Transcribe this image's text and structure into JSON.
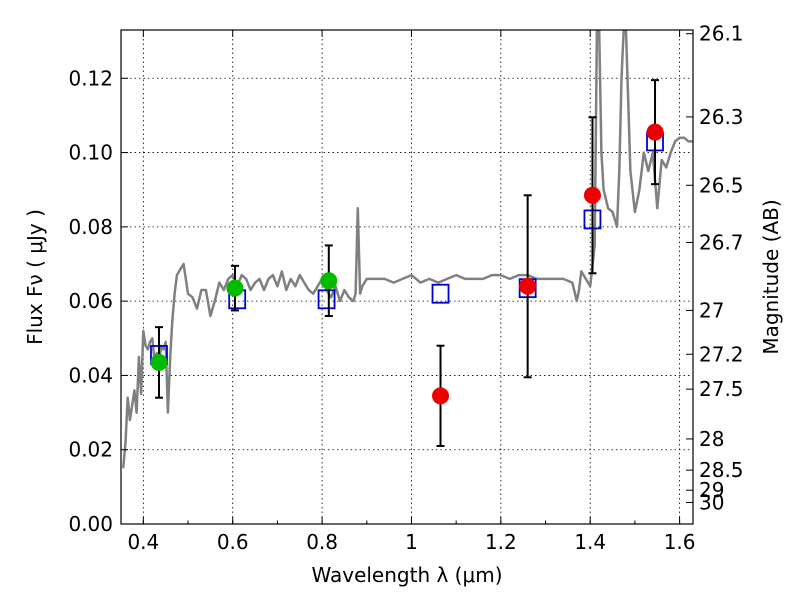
{
  "chart_data": {
    "type": "scatter",
    "xlabel": "Wavelength  λ (μm)",
    "ylabel": "Flux  Fν  ( μJy )",
    "y2label": "Magnitude (AB)",
    "xlim": [
      0.35,
      1.63
    ],
    "ylim": [
      0.0,
      0.133
    ],
    "grid": true,
    "x_ticks": [
      0.4,
      0.6,
      0.8,
      1.0,
      1.2,
      1.4,
      1.6
    ],
    "x_tick_labels": [
      "0.4",
      "0.6",
      "0.8",
      "1",
      "1.2",
      "1.4",
      "1.6"
    ],
    "y_ticks": [
      0.0,
      0.02,
      0.04,
      0.06,
      0.08,
      0.1,
      0.12
    ],
    "y_tick_labels": [
      "0.00",
      "0.02",
      "0.04",
      "0.06",
      "0.08",
      "0.10",
      "0.12"
    ],
    "y2_ticks_flux": [
      0.132,
      0.1096,
      0.0912,
      0.0758,
      0.0575,
      0.0457,
      0.0363,
      0.0229,
      0.0145,
      0.0091,
      0.0058
    ],
    "y2_tick_labels": [
      "26.1",
      "26.3",
      "26.5",
      "26.7",
      "27",
      "27.2",
      "27.5",
      "28",
      "28.5",
      "29",
      "30"
    ],
    "colors": {
      "model": "#808080",
      "model_points": "#0000cc",
      "green_points": "#00bb00",
      "red_points": "#ee0000",
      "errorbar": "#000000",
      "grid": "#000000"
    },
    "series": [
      {
        "name": "model_spectrum",
        "kind": "line",
        "x": [
          0.355,
          0.36,
          0.365,
          0.37,
          0.375,
          0.38,
          0.385,
          0.39,
          0.395,
          0.4,
          0.405,
          0.41,
          0.415,
          0.42,
          0.425,
          0.43,
          0.435,
          0.44,
          0.445,
          0.45,
          0.455,
          0.46,
          0.465,
          0.47,
          0.475,
          0.48,
          0.485,
          0.49,
          0.495,
          0.5,
          0.51,
          0.52,
          0.53,
          0.54,
          0.55,
          0.56,
          0.57,
          0.58,
          0.59,
          0.6,
          0.61,
          0.62,
          0.63,
          0.64,
          0.65,
          0.66,
          0.67,
          0.68,
          0.69,
          0.7,
          0.71,
          0.72,
          0.73,
          0.74,
          0.75,
          0.76,
          0.77,
          0.78,
          0.79,
          0.8,
          0.81,
          0.82,
          0.83,
          0.84,
          0.85,
          0.86,
          0.87,
          0.875,
          0.88,
          0.885,
          0.89,
          0.9,
          0.92,
          0.94,
          0.96,
          0.98,
          1.0,
          1.02,
          1.04,
          1.06,
          1.08,
          1.1,
          1.12,
          1.14,
          1.16,
          1.18,
          1.2,
          1.22,
          1.24,
          1.26,
          1.28,
          1.3,
          1.32,
          1.34,
          1.36,
          1.37,
          1.375,
          1.38,
          1.39,
          1.4,
          1.41,
          1.415,
          1.42,
          1.425,
          1.43,
          1.44,
          1.45,
          1.46,
          1.465,
          1.47,
          1.475,
          1.48,
          1.49,
          1.5,
          1.51,
          1.52,
          1.53,
          1.54,
          1.55,
          1.56,
          1.57,
          1.58,
          1.59,
          1.6,
          1.61,
          1.62,
          1.63
        ],
        "y": [
          0.015,
          0.022,
          0.034,
          0.028,
          0.032,
          0.036,
          0.03,
          0.045,
          0.035,
          0.052,
          0.048,
          0.047,
          0.049,
          0.05,
          0.044,
          0.046,
          0.043,
          0.048,
          0.047,
          0.049,
          0.03,
          0.045,
          0.055,
          0.062,
          0.067,
          0.068,
          0.069,
          0.07,
          0.066,
          0.062,
          0.061,
          0.058,
          0.063,
          0.063,
          0.056,
          0.06,
          0.065,
          0.063,
          0.066,
          0.067,
          0.064,
          0.067,
          0.066,
          0.063,
          0.065,
          0.066,
          0.063,
          0.066,
          0.067,
          0.064,
          0.068,
          0.063,
          0.066,
          0.064,
          0.067,
          0.065,
          0.063,
          0.062,
          0.064,
          0.066,
          0.063,
          0.061,
          0.064,
          0.06,
          0.063,
          0.061,
          0.06,
          0.062,
          0.085,
          0.062,
          0.064,
          0.066,
          0.066,
          0.066,
          0.065,
          0.066,
          0.067,
          0.065,
          0.066,
          0.065,
          0.066,
          0.067,
          0.066,
          0.066,
          0.066,
          0.067,
          0.067,
          0.066,
          0.067,
          0.067,
          0.066,
          0.066,
          0.066,
          0.066,
          0.065,
          0.06,
          0.063,
          0.068,
          0.066,
          0.064,
          0.075,
          0.133,
          0.133,
          0.1,
          0.09,
          0.085,
          0.084,
          0.08,
          0.095,
          0.12,
          0.133,
          0.133,
          0.095,
          0.084,
          0.09,
          0.1,
          0.095,
          0.1,
          0.085,
          0.098,
          0.096,
          0.1,
          0.103,
          0.104,
          0.104,
          0.103,
          0.103
        ]
      },
      {
        "name": "model_photometry",
        "kind": "open_square",
        "x": [
          0.435,
          0.61,
          0.81,
          1.065,
          1.26,
          1.405,
          1.545
        ],
        "y": [
          0.0455,
          0.0605,
          0.0605,
          0.062,
          0.0635,
          0.082,
          0.103
        ]
      },
      {
        "name": "observed_green",
        "kind": "filled_circle",
        "x": [
          0.435,
          0.605,
          0.815
        ],
        "y": [
          0.0435,
          0.0635,
          0.0655
        ],
        "yerr": [
          0.0095,
          0.006,
          0.0095
        ]
      },
      {
        "name": "observed_red",
        "kind": "filled_circle",
        "x": [
          1.065,
          1.26,
          1.405,
          1.545
        ],
        "y": [
          0.0345,
          0.064,
          0.0885,
          0.1055
        ],
        "yerr": [
          0.0135,
          0.0245,
          0.021,
          0.014
        ]
      }
    ]
  }
}
